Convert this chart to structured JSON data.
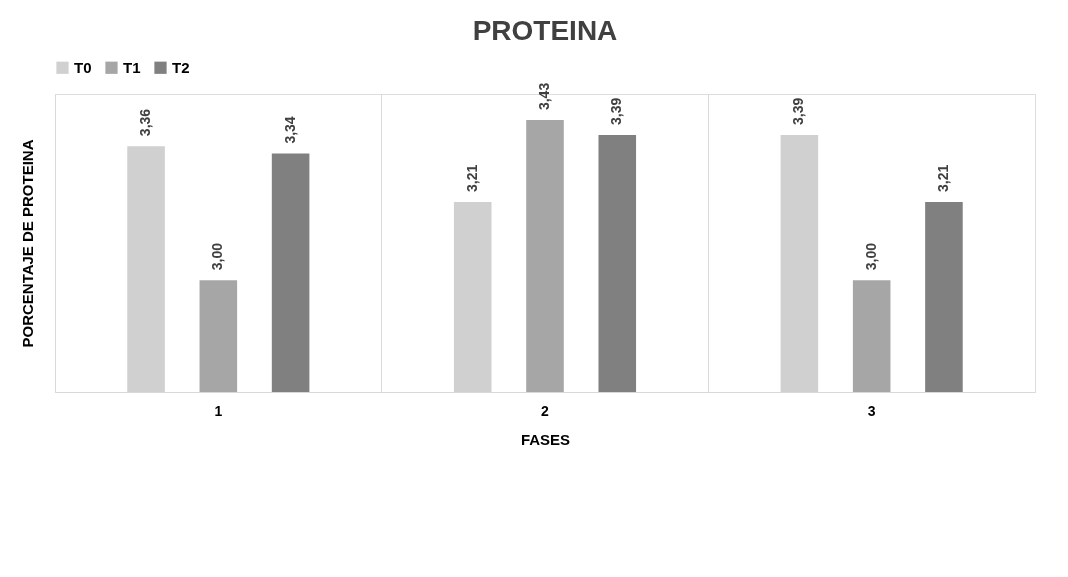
{
  "chart_data": {
    "type": "bar",
    "title": "PROTEINA",
    "xlabel": "FASES",
    "ylabel": "PORCENTAJE DE PROTEINA",
    "categories": [
      "1",
      "2",
      "3"
    ],
    "series": [
      {
        "name": "T0",
        "color": "#d0d0d0",
        "values": [
          3.36,
          3.21,
          3.39
        ],
        "value_labels": [
          "3,36",
          "3,21",
          "3,39"
        ]
      },
      {
        "name": "T1",
        "color": "#a6a6a6",
        "values": [
          3.0,
          3.43,
          3.0
        ],
        "value_labels": [
          "3,00",
          "3,43",
          "3,00"
        ]
      },
      {
        "name": "T2",
        "color": "#808080",
        "values": [
          3.34,
          3.39,
          3.21
        ],
        "value_labels": [
          "3,34",
          "3,39",
          "3,21"
        ]
      }
    ],
    "ylim": [
      2.7,
      3.5
    ],
    "grid": "x",
    "legend": "top",
    "tick_labels": "x"
  }
}
